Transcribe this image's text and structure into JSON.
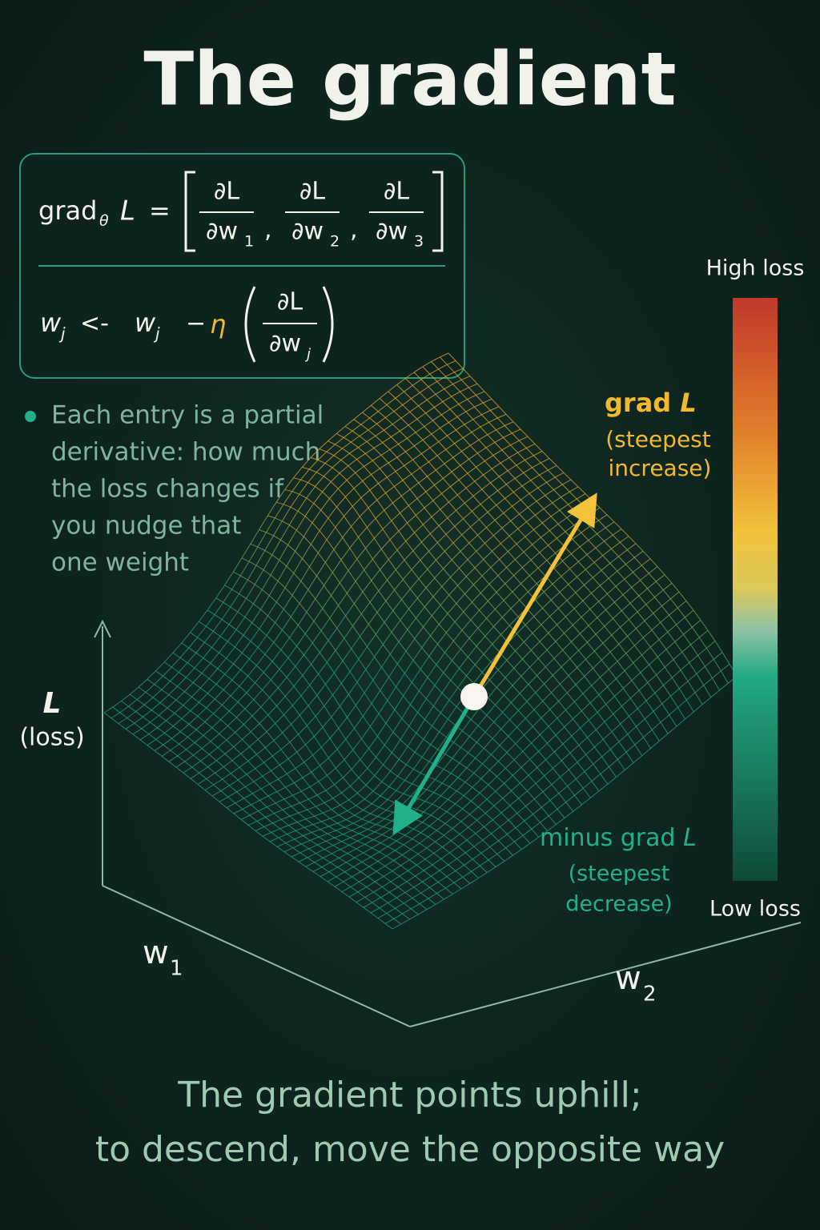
{
  "title": "The gradient",
  "gradient_formula": {
    "lhs": "grad",
    "subscript": "θ",
    "loss": "L",
    "equals": "=",
    "separator": ",",
    "entries": [
      {
        "numerator": "∂L",
        "denominator": "∂w",
        "index": "1"
      },
      {
        "numerator": "∂L",
        "denominator": "∂w",
        "index": "2"
      },
      {
        "numerator": "∂L",
        "denominator": "∂w",
        "index": "3"
      }
    ]
  },
  "update_rule": {
    "weight": "w",
    "index": "j",
    "assign": "<-",
    "minus": "−",
    "learning_rate": "η",
    "numerator": "∂L",
    "denominator": "∂w"
  },
  "bullet": {
    "lines": [
      "Each entry is a partial",
      "derivative: how much",
      "the loss changes if",
      "you nudge that",
      "one weight"
    ]
  },
  "gradient_label": {
    "text": "grad",
    "symbol": "L",
    "note_lines": [
      "(steepest",
      "increase)"
    ]
  },
  "negative_gradient_label": {
    "text": "minus grad",
    "symbol": "L",
    "note_lines": [
      "(steepest",
      "decrease)"
    ]
  },
  "colorbar": {
    "high": "High loss",
    "low": "Low loss"
  },
  "axes": {
    "loss": {
      "symbol": "L",
      "label": "(loss)"
    },
    "w1": {
      "symbol": "w",
      "index": "1"
    },
    "w2": {
      "symbol": "w",
      "index": "2"
    }
  },
  "caption": {
    "lines": [
      "The gradient points uphill;",
      "to descend, move the opposite way"
    ]
  }
}
